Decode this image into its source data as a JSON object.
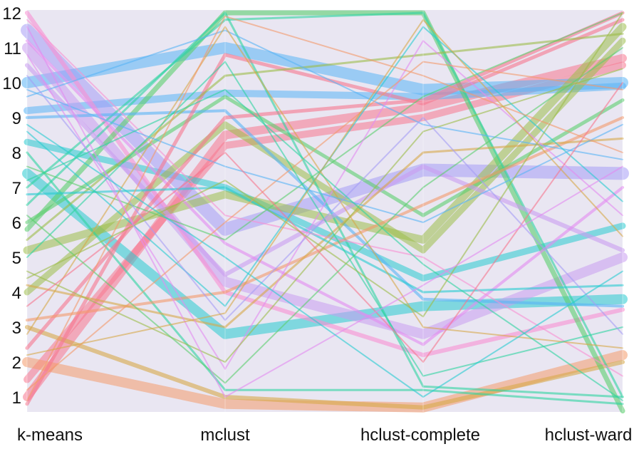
{
  "chart_data": {
    "type": "parallel-coordinates",
    "axes": [
      "k-means",
      "mclust",
      "hclust-complete",
      "hclust-ward"
    ],
    "y_ticks": [
      "1",
      "2",
      "3",
      "4",
      "5",
      "6",
      "7",
      "8",
      "9",
      "10",
      "11",
      "12"
    ],
    "ylim": [
      1,
      12
    ],
    "grid": false,
    "legend": "none",
    "background_color": "#e9e6f2",
    "palette": [
      "#f7768e",
      "#f49a6b",
      "#d7a84a",
      "#9cbd4a",
      "#5ccf6e",
      "#2fd3a0",
      "#28cbd0",
      "#59b4f5",
      "#a59df5",
      "#e38af0",
      "#f98fd2"
    ],
    "bands": [
      {
        "values": [
          1.0,
          8.5,
          9.3,
          10.7
        ],
        "weight": 12,
        "color": "#f7768e"
      },
      {
        "values": [
          1.5,
          8.2,
          9.0,
          10.5
        ],
        "weight": 10,
        "color": "#f7768e"
      },
      {
        "values": [
          10.0,
          11.0,
          9.8,
          10.0
        ],
        "weight": 16,
        "color": "#59b4f5"
      },
      {
        "values": [
          9.2,
          9.7,
          9.6,
          9.9
        ],
        "weight": 10,
        "color": "#59b4f5"
      },
      {
        "values": [
          8.3,
          7.0,
          4.4,
          5.9
        ],
        "weight": 9,
        "color": "#28cbd0"
      },
      {
        "values": [
          7.4,
          2.8,
          3.6,
          3.8
        ],
        "weight": 14,
        "color": "#28cbd0"
      },
      {
        "values": [
          11.5,
          5.8,
          7.5,
          7.4
        ],
        "weight": 18,
        "color": "#a59df5"
      },
      {
        "values": [
          11.0,
          4.3,
          2.8,
          5.0
        ],
        "weight": 14,
        "color": "#c99cf0"
      },
      {
        "values": [
          12.0,
          4.0,
          2.2,
          3.5
        ],
        "weight": 6,
        "color": "#f98fd2"
      },
      {
        "values": [
          2.0,
          0.8,
          0.7,
          2.2
        ],
        "weight": 14,
        "color": "#f49a6b"
      },
      {
        "values": [
          3.0,
          1.0,
          0.7,
          2.0
        ],
        "weight": 6,
        "color": "#d7a84a"
      },
      {
        "values": [
          4.0,
          8.8,
          5.2,
          11.2
        ],
        "weight": 9,
        "color": "#9cbd4a"
      },
      {
        "values": [
          5.2,
          6.8,
          5.5,
          11.6
        ],
        "weight": 11,
        "color": "#9cbd4a"
      },
      {
        "values": [
          5.8,
          12.0,
          12.0,
          0.6
        ],
        "weight": 7,
        "color": "#5ccf6e"
      },
      {
        "values": [
          6.0,
          9.6,
          6.2,
          9.5
        ],
        "weight": 5,
        "color": "#5ccf6e"
      },
      {
        "values": [
          6.5,
          12.0,
          1.3,
          1.0
        ],
        "weight": 3,
        "color": "#2fd3a0"
      },
      {
        "values": [
          7.0,
          11.8,
          12.0,
          1.0
        ],
        "weight": 3,
        "color": "#2fd3a0"
      },
      {
        "values": [
          8.0,
          1.2,
          1.2,
          0.8
        ],
        "weight": 3,
        "color": "#2fd3a0"
      },
      {
        "values": [
          9.0,
          9.2,
          3.8,
          3.6
        ],
        "weight": 4,
        "color": "#59b4f5"
      },
      {
        "values": [
          10.5,
          4.5,
          7.6,
          5.2
        ],
        "weight": 6,
        "color": "#c99cf0"
      },
      {
        "values": [
          11.2,
          5.4,
          2.5,
          7.0
        ],
        "weight": 4,
        "color": "#e38af0"
      },
      {
        "values": [
          2.4,
          9.0,
          9.5,
          12.0
        ],
        "weight": 5,
        "color": "#f7768e"
      },
      {
        "values": [
          0.8,
          10.8,
          9.4,
          11.8
        ],
        "weight": 5,
        "color": "#f7768e"
      },
      {
        "values": [
          3.2,
          4.0,
          6.5,
          9.0
        ],
        "weight": 4,
        "color": "#f49a6b"
      },
      {
        "values": [
          4.2,
          3.0,
          8.0,
          8.4
        ],
        "weight": 3,
        "color": "#d7a84a"
      },
      {
        "values": [
          5.5,
          10.2,
          10.8,
          11.4
        ],
        "weight": 3,
        "color": "#9cbd4a"
      },
      {
        "values": [
          6.8,
          7.0,
          4.0,
          4.2
        ],
        "weight": 3,
        "color": "#28cbd0"
      },
      {
        "values": [
          7.6,
          5.5,
          9.6,
          12.0
        ],
        "weight": 2,
        "color": "#5ccf6e"
      },
      {
        "values": [
          9.6,
          11.5,
          8.8,
          7.8
        ],
        "weight": 2,
        "color": "#59b4f5"
      },
      {
        "values": [
          10.8,
          1.8,
          11.2,
          6.2
        ],
        "weight": 2,
        "color": "#e38af0"
      },
      {
        "values": [
          11.8,
          6.2,
          5.0,
          1.6
        ],
        "weight": 2,
        "color": "#f98fd2"
      },
      {
        "values": [
          1.2,
          6.0,
          10.6,
          9.8
        ],
        "weight": 2,
        "color": "#f49a6b"
      },
      {
        "values": [
          2.8,
          11.6,
          3.0,
          2.4
        ],
        "weight": 2,
        "color": "#d7a84a"
      },
      {
        "values": [
          4.6,
          2.0,
          8.6,
          10.4
        ],
        "weight": 2,
        "color": "#9cbd4a"
      },
      {
        "values": [
          5.0,
          10.6,
          1.6,
          3.0
        ],
        "weight": 2,
        "color": "#2fd3a0"
      },
      {
        "values": [
          8.6,
          3.6,
          11.6,
          6.6
        ],
        "weight": 2,
        "color": "#28cbd0"
      },
      {
        "values": [
          9.8,
          7.6,
          6.0,
          8.8
        ],
        "weight": 2,
        "color": "#59b4f5"
      },
      {
        "values": [
          3.6,
          8.0,
          2.0,
          10.0
        ],
        "weight": 2,
        "color": "#f7768e"
      },
      {
        "values": [
          6.2,
          1.4,
          7.0,
          11.0
        ],
        "weight": 2,
        "color": "#5ccf6e"
      },
      {
        "values": [
          10.2,
          3.2,
          9.0,
          2.8
        ],
        "weight": 2,
        "color": "#a59df5"
      },
      {
        "values": [
          7.2,
          9.8,
          4.8,
          0.9
        ],
        "weight": 2,
        "color": "#2fd3a0"
      },
      {
        "values": [
          0.9,
          11.9,
          10.2,
          8.0
        ],
        "weight": 2,
        "color": "#f49a6b"
      },
      {
        "values": [
          4.4,
          7.2,
          3.3,
          12.0
        ],
        "weight": 2,
        "color": "#9cbd4a"
      },
      {
        "values": [
          11.6,
          1.0,
          4.2,
          7.6
        ],
        "weight": 2,
        "color": "#e38af0"
      },
      {
        "values": [
          8.8,
          5.0,
          1.0,
          4.6
        ],
        "weight": 2,
        "color": "#28cbd0"
      },
      {
        "values": [
          2.2,
          3.4,
          11.8,
          5.6
        ],
        "weight": 2,
        "color": "#d7a84a"
      }
    ]
  }
}
